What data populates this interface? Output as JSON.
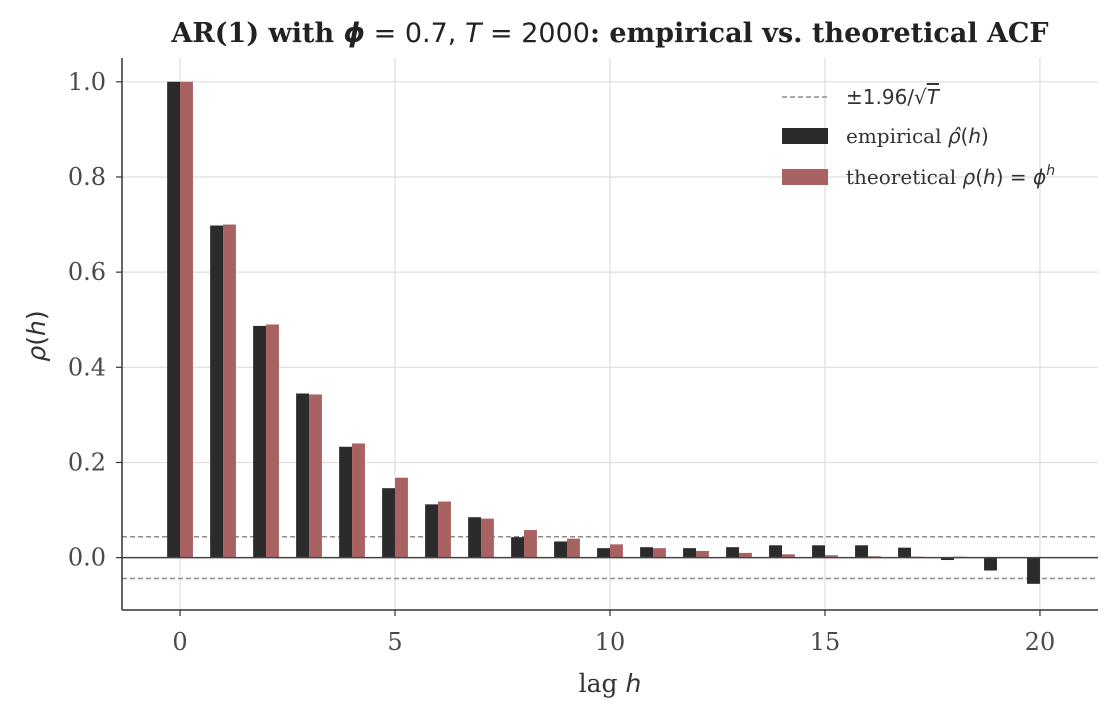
{
  "chart_data": {
    "type": "bar",
    "title": {
      "prefix": "AR(1) with ",
      "phi_sym": "ϕ",
      "phi_eq": " = 0.7, ",
      "t_sym": "T",
      "t_eq": " = 2000",
      "suffix": ": empirical vs. theoretical ACF"
    },
    "xlabel": {
      "text": "lag ",
      "sym": "h"
    },
    "ylabel": {
      "sym": "ρ",
      "open": "(",
      "var": "h",
      "close": ")"
    },
    "xlim": [
      -1.35,
      21.35
    ],
    "ylim": [
      -0.11,
      1.05
    ],
    "x_ticks": [
      0,
      5,
      10,
      15,
      20
    ],
    "x_tick_labels": [
      "0",
      "5",
      "10",
      "15",
      "20"
    ],
    "y_ticks": [
      0.0,
      0.2,
      0.4,
      0.6,
      0.8,
      1.0
    ],
    "y_tick_labels": [
      "0.0",
      "0.2",
      "0.4",
      "0.6",
      "0.8",
      "1.0"
    ],
    "grid": true,
    "legend_position": "top-right",
    "lags": [
      0,
      1,
      2,
      3,
      4,
      5,
      6,
      7,
      8,
      9,
      10,
      11,
      12,
      13,
      14,
      15,
      16,
      17,
      18,
      19,
      20
    ],
    "series": [
      {
        "key": "empirical",
        "legend": {
          "text": "empirical ",
          "sym": "ρ̂",
          "open": "(",
          "var": "h",
          "close": ")"
        },
        "color": "#2b2b2b",
        "values": [
          1.0,
          0.698,
          0.487,
          0.345,
          0.233,
          0.146,
          0.112,
          0.085,
          0.043,
          0.034,
          0.02,
          0.022,
          0.02,
          0.022,
          0.026,
          0.026,
          0.026,
          0.021,
          -0.005,
          -0.027,
          -0.055
        ]
      },
      {
        "key": "theoretical",
        "legend": {
          "text": "theoretical ",
          "sym": "ρ",
          "open": "(",
          "var": "h",
          "eq": ") = ",
          "base": "ϕ",
          "sup": "h"
        },
        "color": "#a86262",
        "values": [
          1.0,
          0.7,
          0.49,
          0.343,
          0.24,
          0.168,
          0.118,
          0.082,
          0.058,
          0.04,
          0.028,
          0.02,
          0.014,
          0.01,
          0.007,
          0.005,
          0.003,
          0.002,
          0.002,
          0.001,
          0.001
        ]
      }
    ],
    "confidence_band": {
      "legend": {
        "text": "±1.96/√",
        "var": "T"
      },
      "value": 0.0438,
      "color": "#8c8c8c"
    },
    "zero_line_color": "#444444"
  }
}
